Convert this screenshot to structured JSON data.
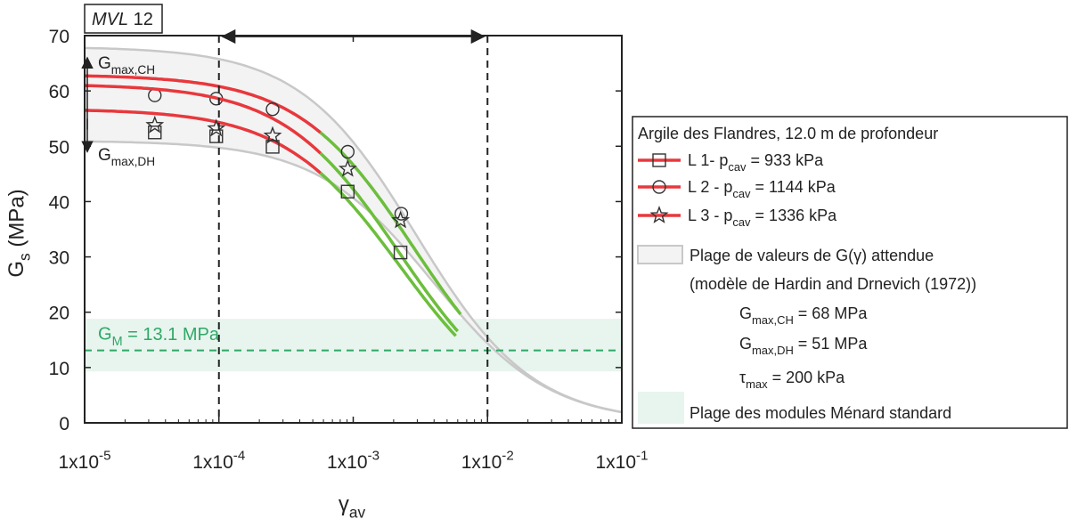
{
  "chart_data": {
    "type": "line",
    "tag": "MVL 12",
    "xlabel": {
      "main": "γ",
      "sub": "av"
    },
    "ylabel": {
      "main": "G",
      "sub": "s",
      "rest": " (MPa)"
    },
    "xscale": "log",
    "xlim": [
      1e-05,
      0.1
    ],
    "ylim": [
      0,
      70
    ],
    "x_ticks": [
      {
        "value": 1e-05,
        "base": "1x10",
        "exp": "-5"
      },
      {
        "value": 0.0001,
        "base": "1x10",
        "exp": "-4"
      },
      {
        "value": 0.001,
        "base": "1x10",
        "exp": "-3"
      },
      {
        "value": 0.01,
        "base": "1x10",
        "exp": "-2"
      },
      {
        "value": 0.1,
        "base": "1x10",
        "exp": "-1"
      }
    ],
    "y_ticks": [
      0,
      10,
      20,
      30,
      40,
      50,
      60,
      70
    ],
    "colors": {
      "red": "#e8383d",
      "green": "#6cbe3c",
      "band": "#c8c8c8",
      "teal": "#2fa866",
      "tealband": "#e7f5ee"
    },
    "series": [
      {
        "name": "L 1- p",
        "sub": "cav",
        "suffix": " = 933 kPa",
        "marker": "square",
        "points": [
          [
            3.33e-05,
            52.5
          ],
          [
            9.55e-05,
            51.8
          ],
          [
            0.000251,
            49.9
          ],
          [
            0.00091,
            41.8
          ],
          [
            0.00225,
            30.8
          ]
        ]
      },
      {
        "name": "L 2 - p",
        "sub": "cav",
        "suffix": " = 1144 kPa",
        "marker": "circle",
        "points": [
          [
            3.33e-05,
            59.2
          ],
          [
            9.55e-05,
            58.6
          ],
          [
            0.000251,
            56.7
          ],
          [
            0.00091,
            49.0
          ],
          [
            0.00228,
            37.8
          ]
        ]
      },
      {
        "name": "L 3 - p",
        "sub": "cav",
        "suffix": " = 1336 kPa",
        "marker": "star",
        "points": [
          [
            3.33e-05,
            53.8
          ],
          [
            9.55e-05,
            53.2
          ],
          [
            0.000251,
            51.9
          ],
          [
            0.00091,
            45.9
          ],
          [
            0.00225,
            36.6
          ]
        ]
      }
    ],
    "band_params": {
      "Gmax_CH": 68,
      "Gmax_DH": 51,
      "tau_max": 200
    },
    "GM": {
      "value": 13.1,
      "label_main": "G",
      "label_sub": "M",
      "label_rest": " = 13.1 MPa",
      "range": [
        9.3,
        18.8
      ]
    },
    "vlines": [
      0.0001,
      0.01
    ],
    "annotations": {
      "gmax_ch": {
        "main": "G",
        "sub": "max,CH"
      },
      "gmax_dh": {
        "main": "G",
        "sub": "max,DH"
      }
    },
    "legend": {
      "title": "Argile des Flandres, 12.0 m de profondeur",
      "band_line1": "Plage de valeurs de G(γ) attendue",
      "band_line2": "(modèle de Hardin and Drnevich (1972))",
      "gch": {
        "main": "G",
        "sub": "max,CH",
        "rest": " = 68 MPa"
      },
      "gdh": {
        "main": "G",
        "sub": "max,DH",
        "rest": " = 51 MPa"
      },
      "tau": {
        "main": "τ",
        "sub": "max",
        "rest": " = 200 kPa"
      },
      "menard": "Plage des modules Ménard standard"
    }
  }
}
